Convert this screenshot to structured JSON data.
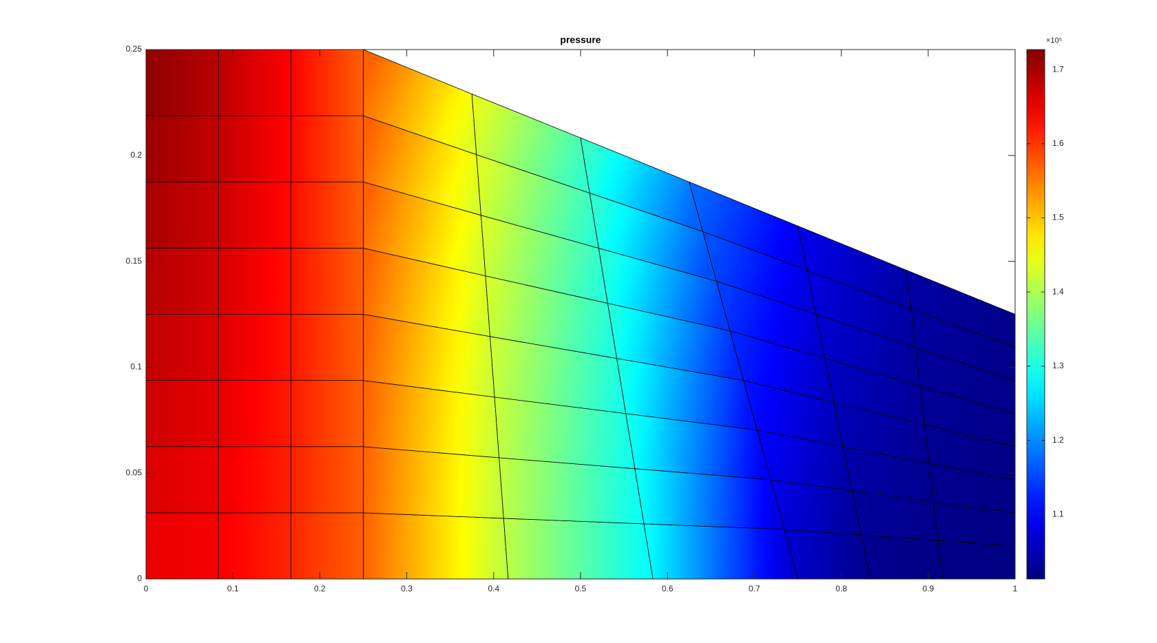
{
  "chart_data": {
    "type": "mesh",
    "title": "pressure",
    "xlim": [
      0,
      1
    ],
    "xticks": [
      0,
      0.1,
      0.2,
      0.3,
      0.4,
      0.5,
      0.6,
      0.7,
      0.8,
      0.9,
      1
    ],
    "ylim": [
      0,
      0.25
    ],
    "yticks": [
      0,
      0.05,
      0.1,
      0.15,
      0.2,
      0.25
    ],
    "colormap": "jet",
    "clim": [
      1.013,
      1.727
    ],
    "cticks": [
      1.1,
      1.2,
      1.3,
      1.4,
      1.5,
      1.6,
      1.7
    ],
    "colorbar_exponent": "×10⁵",
    "mesh": {
      "rows": 8,
      "columns": [
        {
          "x_bottom": 0,
          "x_top": 0,
          "y_top": 0.25,
          "p_bottom": 1.65,
          "p_top": 1.72
        },
        {
          "x_bottom": 0.0833,
          "x_top": 0.0833,
          "y_top": 0.25,
          "p_bottom": 1.64,
          "p_top": 1.69
        },
        {
          "x_bottom": 0.1667,
          "x_top": 0.1667,
          "y_top": 0.25,
          "p_bottom": 1.61,
          "p_top": 1.64
        },
        {
          "x_bottom": 0.25,
          "x_top": 0.25,
          "y_top": 0.25,
          "p_bottom": 1.57,
          "p_top": 1.57
        },
        {
          "x_bottom": 0.4167,
          "x_top": 0.375,
          "y_top": 0.229,
          "p_bottom": 1.41,
          "p_top": 1.44
        },
        {
          "x_bottom": 0.5833,
          "x_top": 0.5,
          "y_top": 0.2083,
          "p_bottom": 1.28,
          "p_top": 1.32
        },
        {
          "x_bottom": 0.75,
          "x_top": 0.625,
          "y_top": 0.1875,
          "p_bottom": 1.06,
          "p_top": 1.18
        },
        {
          "x_bottom": 0.8333,
          "x_top": 0.75,
          "y_top": 0.1667,
          "p_bottom": 1.02,
          "p_top": 1.09
        },
        {
          "x_bottom": 0.9167,
          "x_top": 0.875,
          "y_top": 0.1458,
          "p_bottom": 1.015,
          "p_top": 1.04
        },
        {
          "x_bottom": 1,
          "x_top": 1,
          "y_top": 0.125,
          "p_bottom": 1.015,
          "p_top": 1.02
        }
      ]
    }
  }
}
